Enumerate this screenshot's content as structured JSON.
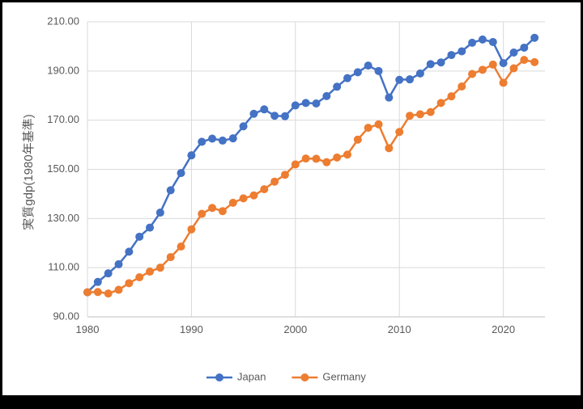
{
  "chart_data": {
    "type": "line",
    "title": "",
    "xlabel": "",
    "ylabel": "実質gdp(1980年基準)",
    "xlim": [
      1980,
      2024
    ],
    "ylim": [
      90,
      210
    ],
    "x_ticks": [
      1980,
      1990,
      2000,
      2010,
      2020
    ],
    "y_ticks": [
      "90.00",
      "110.00",
      "130.00",
      "150.00",
      "170.00",
      "190.00",
      "210.00"
    ],
    "grid": true,
    "legend": "bottom",
    "x": [
      1980,
      1981,
      1982,
      1983,
      1984,
      1985,
      1986,
      1987,
      1988,
      1989,
      1990,
      1991,
      1992,
      1993,
      1994,
      1995,
      1996,
      1997,
      1998,
      1999,
      2000,
      2001,
      2002,
      2003,
      2004,
      2005,
      2006,
      2007,
      2008,
      2009,
      2010,
      2011,
      2012,
      2013,
      2014,
      2015,
      2016,
      2017,
      2018,
      2019,
      2020,
      2021,
      2022,
      2023
    ],
    "series": [
      {
        "name": "Japan",
        "color": "#4472C4",
        "values": [
          100.0,
          104.2,
          107.7,
          111.4,
          116.5,
          122.6,
          126.3,
          132.4,
          141.5,
          148.5,
          155.7,
          161.2,
          162.5,
          161.7,
          162.6,
          167.5,
          172.6,
          174.4,
          171.8,
          171.6,
          176.0,
          177.0,
          176.8,
          179.8,
          183.6,
          187.1,
          189.5,
          192.2,
          190.0,
          179.2,
          186.4,
          186.6,
          189.0,
          192.8,
          193.5,
          196.5,
          198.0,
          201.5,
          202.8,
          201.8,
          193.2,
          197.5,
          199.5,
          203.5
        ]
      },
      {
        "name": "Germany",
        "color": "#ED7D31",
        "values": [
          100.0,
          100.1,
          99.5,
          101.0,
          103.7,
          106.1,
          108.4,
          110.0,
          114.3,
          118.6,
          125.6,
          131.9,
          134.3,
          133.0,
          136.4,
          138.2,
          139.4,
          141.9,
          145.0,
          147.8,
          152.0,
          154.4,
          154.3,
          152.9,
          154.8,
          156.0,
          162.1,
          166.9,
          168.3,
          158.6,
          165.2,
          171.8,
          172.4,
          173.3,
          177.0,
          179.7,
          183.7,
          188.8,
          190.5,
          192.6,
          185.2,
          191.1,
          194.5,
          193.6
        ]
      }
    ]
  }
}
